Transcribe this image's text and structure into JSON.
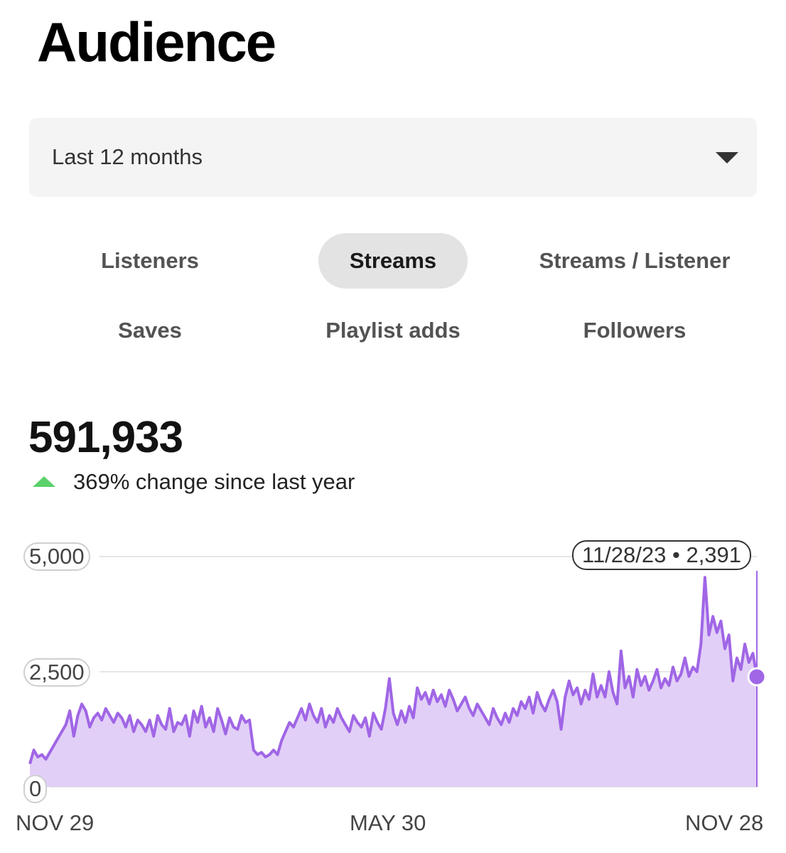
{
  "page_title": "Audience",
  "range_select": {
    "value": "Last 12 months"
  },
  "tabs": [
    {
      "label": "Listeners",
      "active": false
    },
    {
      "label": "Streams",
      "active": true
    },
    {
      "label": "Streams / Listener",
      "active": false
    },
    {
      "label": "Saves",
      "active": false
    },
    {
      "label": "Playlist adds",
      "active": false
    },
    {
      "label": "Followers",
      "active": false
    }
  ],
  "metric": {
    "value": "591,933",
    "change_text": "369% change since last year"
  },
  "chart_data": {
    "type": "area",
    "title": "",
    "xlabel": "",
    "ylabel": "",
    "ylim": [
      0,
      5000
    ],
    "y_ticks": [
      "0",
      "2,500",
      "5,000"
    ],
    "x_ticks": [
      "NOV 29",
      "MAY 30",
      "NOV 28"
    ],
    "grid": true,
    "line_color": "#a066e6",
    "fill_color": "#e2cff7",
    "tooltip": "11/28/23 • 2,391",
    "series": [
      {
        "values": [
          500,
          800,
          650,
          700,
          600,
          750,
          900,
          1050,
          1200,
          1350,
          1650,
          1100,
          1550,
          1800,
          1650,
          1300,
          1500,
          1600,
          1450,
          1700,
          1550,
          1400,
          1600,
          1500,
          1300,
          1550,
          1200,
          1450,
          1350,
          1200,
          1450,
          1100,
          1550,
          1350,
          1250,
          1700,
          1200,
          1400,
          1350,
          1550,
          1100,
          1650,
          1400,
          1750,
          1300,
          1500,
          1200,
          1700,
          1450,
          1150,
          1500,
          1300,
          1250,
          1550,
          1400,
          1450,
          800,
          700,
          750,
          650,
          700,
          800,
          700,
          1000,
          1200,
          1400,
          1300,
          1500,
          1700,
          1450,
          1800,
          1550,
          1400,
          1700,
          1300,
          1550,
          1400,
          1700,
          1500,
          1350,
          1200,
          1550,
          1400,
          1300,
          1500,
          1100,
          1600,
          1400,
          1250,
          1700,
          2350,
          1600,
          1350,
          1650,
          1400,
          1750,
          1500,
          2150,
          1900,
          2050,
          1800,
          2100,
          1850,
          2000,
          1750,
          2100,
          1900,
          1650,
          1800,
          1950,
          1700,
          1550,
          1800,
          1650,
          1500,
          1350,
          1700,
          1500,
          1350,
          1600,
          1400,
          1700,
          1550,
          1850,
          1700,
          1950,
          1600,
          2050,
          1800,
          1650,
          1900,
          2100,
          1850,
          1250,
          1950,
          2300,
          2000,
          2150,
          1800,
          2100,
          1900,
          2450,
          1950,
          2200,
          1950,
          2500,
          2050,
          1800,
          2950,
          2150,
          2400,
          1950,
          2550,
          2200,
          2400,
          2100,
          2300,
          2550,
          2150,
          2350,
          2200,
          2600,
          2300,
          2450,
          2800,
          2400,
          2600,
          2500,
          3100,
          4550,
          3300,
          3700,
          3350,
          3600,
          3000,
          3300,
          2300,
          2800,
          2550,
          3100,
          2700,
          2900,
          2391
        ]
      }
    ]
  }
}
